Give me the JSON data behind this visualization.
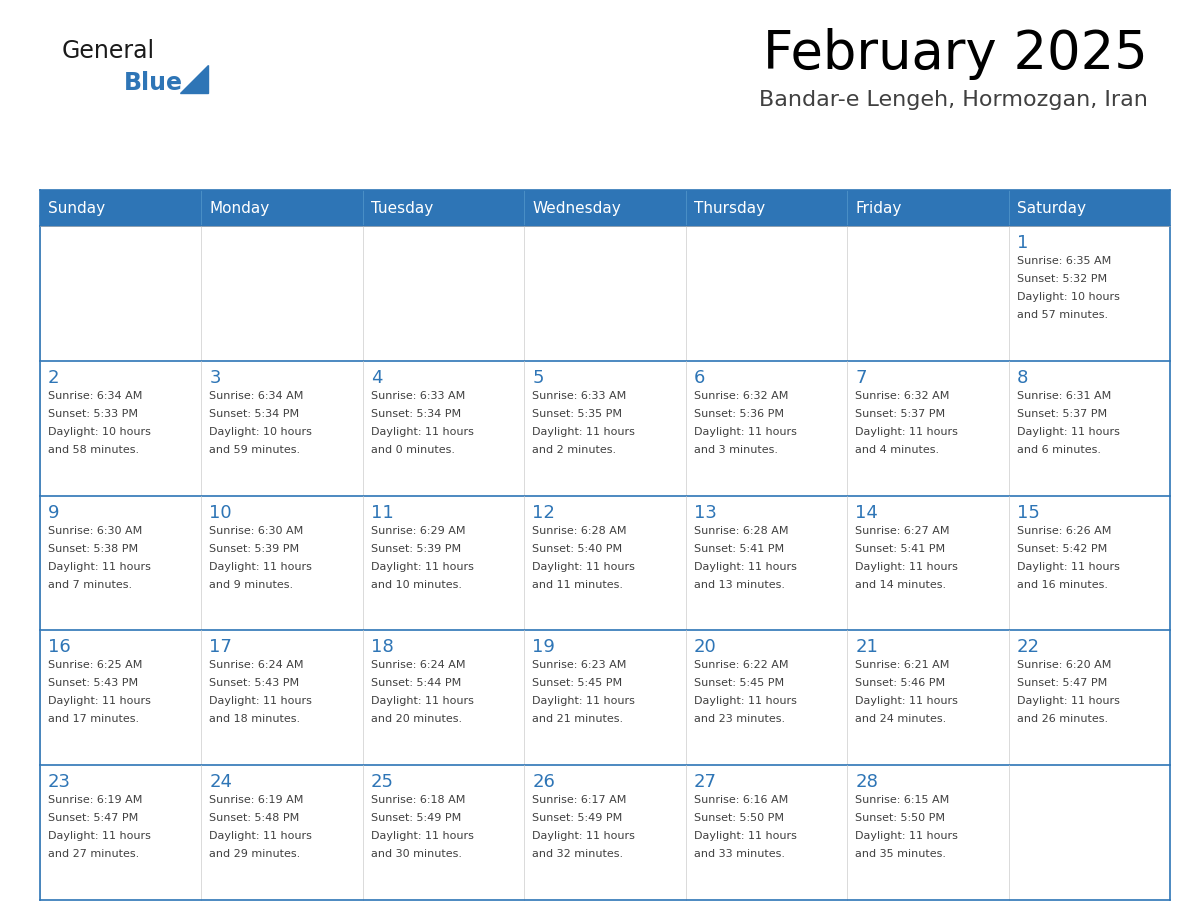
{
  "title": "February 2025",
  "subtitle": "Bandar-e Lengeh, Hormozgan, Iran",
  "days_of_week": [
    "Sunday",
    "Monday",
    "Tuesday",
    "Wednesday",
    "Thursday",
    "Friday",
    "Saturday"
  ],
  "header_bg": "#2e75b6",
  "header_text": "#ffffff",
  "cell_bg": "#ffffff",
  "cell_border": "#2e75b6",
  "day_num_color": "#2e75b6",
  "info_text_color": "#404040",
  "title_color": "#000000",
  "subtitle_color": "#404040",
  "logo_general_color": "#1a1a1a",
  "logo_blue_color": "#2e75b6",
  "calendar_data": [
    [
      null,
      null,
      null,
      null,
      null,
      null,
      {
        "day": 1,
        "sunrise": "6:35 AM",
        "sunset": "5:32 PM",
        "daylight": "10 hours",
        "daylight2": "and 57 minutes."
      }
    ],
    [
      {
        "day": 2,
        "sunrise": "6:34 AM",
        "sunset": "5:33 PM",
        "daylight": "10 hours",
        "daylight2": "and 58 minutes."
      },
      {
        "day": 3,
        "sunrise": "6:34 AM",
        "sunset": "5:34 PM",
        "daylight": "10 hours",
        "daylight2": "and 59 minutes."
      },
      {
        "day": 4,
        "sunrise": "6:33 AM",
        "sunset": "5:34 PM",
        "daylight": "11 hours",
        "daylight2": "and 0 minutes."
      },
      {
        "day": 5,
        "sunrise": "6:33 AM",
        "sunset": "5:35 PM",
        "daylight": "11 hours",
        "daylight2": "and 2 minutes."
      },
      {
        "day": 6,
        "sunrise": "6:32 AM",
        "sunset": "5:36 PM",
        "daylight": "11 hours",
        "daylight2": "and 3 minutes."
      },
      {
        "day": 7,
        "sunrise": "6:32 AM",
        "sunset": "5:37 PM",
        "daylight": "11 hours",
        "daylight2": "and 4 minutes."
      },
      {
        "day": 8,
        "sunrise": "6:31 AM",
        "sunset": "5:37 PM",
        "daylight": "11 hours",
        "daylight2": "and 6 minutes."
      }
    ],
    [
      {
        "day": 9,
        "sunrise": "6:30 AM",
        "sunset": "5:38 PM",
        "daylight": "11 hours",
        "daylight2": "and 7 minutes."
      },
      {
        "day": 10,
        "sunrise": "6:30 AM",
        "sunset": "5:39 PM",
        "daylight": "11 hours",
        "daylight2": "and 9 minutes."
      },
      {
        "day": 11,
        "sunrise": "6:29 AM",
        "sunset": "5:39 PM",
        "daylight": "11 hours",
        "daylight2": "and 10 minutes."
      },
      {
        "day": 12,
        "sunrise": "6:28 AM",
        "sunset": "5:40 PM",
        "daylight": "11 hours",
        "daylight2": "and 11 minutes."
      },
      {
        "day": 13,
        "sunrise": "6:28 AM",
        "sunset": "5:41 PM",
        "daylight": "11 hours",
        "daylight2": "and 13 minutes."
      },
      {
        "day": 14,
        "sunrise": "6:27 AM",
        "sunset": "5:41 PM",
        "daylight": "11 hours",
        "daylight2": "and 14 minutes."
      },
      {
        "day": 15,
        "sunrise": "6:26 AM",
        "sunset": "5:42 PM",
        "daylight": "11 hours",
        "daylight2": "and 16 minutes."
      }
    ],
    [
      {
        "day": 16,
        "sunrise": "6:25 AM",
        "sunset": "5:43 PM",
        "daylight": "11 hours",
        "daylight2": "and 17 minutes."
      },
      {
        "day": 17,
        "sunrise": "6:24 AM",
        "sunset": "5:43 PM",
        "daylight": "11 hours",
        "daylight2": "and 18 minutes."
      },
      {
        "day": 18,
        "sunrise": "6:24 AM",
        "sunset": "5:44 PM",
        "daylight": "11 hours",
        "daylight2": "and 20 minutes."
      },
      {
        "day": 19,
        "sunrise": "6:23 AM",
        "sunset": "5:45 PM",
        "daylight": "11 hours",
        "daylight2": "and 21 minutes."
      },
      {
        "day": 20,
        "sunrise": "6:22 AM",
        "sunset": "5:45 PM",
        "daylight": "11 hours",
        "daylight2": "and 23 minutes."
      },
      {
        "day": 21,
        "sunrise": "6:21 AM",
        "sunset": "5:46 PM",
        "daylight": "11 hours",
        "daylight2": "and 24 minutes."
      },
      {
        "day": 22,
        "sunrise": "6:20 AM",
        "sunset": "5:47 PM",
        "daylight": "11 hours",
        "daylight2": "and 26 minutes."
      }
    ],
    [
      {
        "day": 23,
        "sunrise": "6:19 AM",
        "sunset": "5:47 PM",
        "daylight": "11 hours",
        "daylight2": "and 27 minutes."
      },
      {
        "day": 24,
        "sunrise": "6:19 AM",
        "sunset": "5:48 PM",
        "daylight": "11 hours",
        "daylight2": "and 29 minutes."
      },
      {
        "day": 25,
        "sunrise": "6:18 AM",
        "sunset": "5:49 PM",
        "daylight": "11 hours",
        "daylight2": "and 30 minutes."
      },
      {
        "day": 26,
        "sunrise": "6:17 AM",
        "sunset": "5:49 PM",
        "daylight": "11 hours",
        "daylight2": "and 32 minutes."
      },
      {
        "day": 27,
        "sunrise": "6:16 AM",
        "sunset": "5:50 PM",
        "daylight": "11 hours",
        "daylight2": "and 33 minutes."
      },
      {
        "day": 28,
        "sunrise": "6:15 AM",
        "sunset": "5:50 PM",
        "daylight": "11 hours",
        "daylight2": "and 35 minutes."
      },
      null
    ]
  ]
}
